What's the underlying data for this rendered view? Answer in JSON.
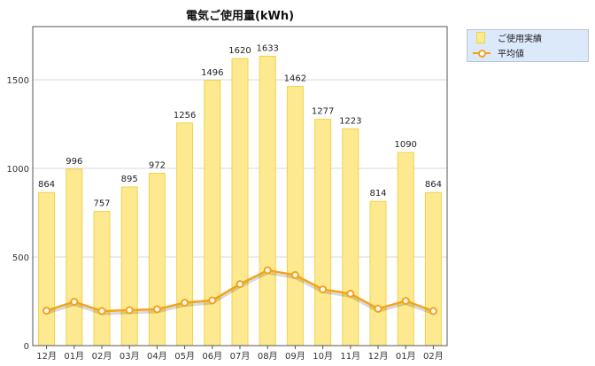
{
  "chart_data": {
    "type": "bar",
    "title": "電気ご使用量(kWh)",
    "xlabel": "",
    "ylabel": "",
    "ylim": [
      0,
      1800
    ],
    "yticks": [
      0,
      500,
      1000,
      1500
    ],
    "grid": true,
    "legend_position": "top-right",
    "categories": [
      "12月",
      "01月",
      "02月",
      "03月",
      "04月",
      "05月",
      "06月",
      "07月",
      "08月",
      "09月",
      "10月",
      "11月",
      "12月",
      "01月",
      "02月"
    ],
    "series": [
      {
        "name": "ご使用実績",
        "type": "bar",
        "color": "#fde98f",
        "values": [
          864,
          996,
          757,
          895,
          972,
          1256,
          1496,
          1620,
          1633,
          1462,
          1277,
          1223,
          814,
          1090,
          864
        ]
      },
      {
        "name": "平均値",
        "type": "line",
        "color": "#f2a31b",
        "values": [
          197,
          247,
          195,
          200,
          205,
          242,
          255,
          347,
          425,
          398,
          317,
          293,
          208,
          252,
          195
        ]
      }
    ]
  }
}
